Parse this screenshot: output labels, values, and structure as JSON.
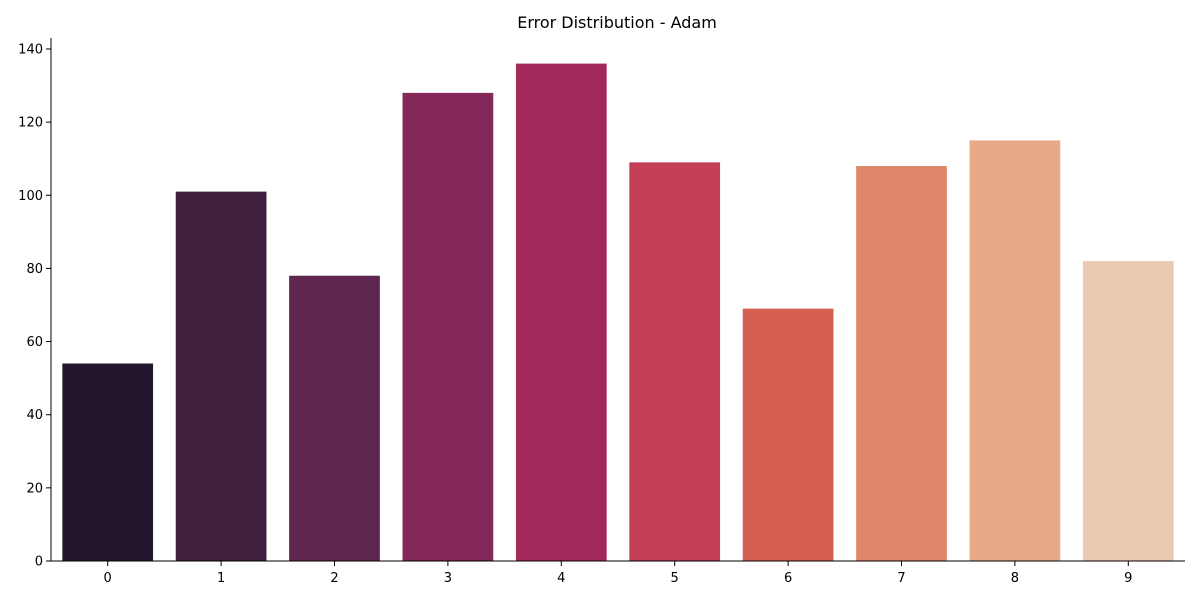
{
  "chart_data": {
    "type": "bar",
    "title": "Error Distribution - Adam",
    "xlabel": "",
    "ylabel": "",
    "categories": [
      "0",
      "1",
      "2",
      "3",
      "4",
      "5",
      "6",
      "7",
      "8",
      "9"
    ],
    "values": [
      54,
      101,
      78,
      128,
      136,
      109,
      69,
      108,
      115,
      82
    ],
    "colors": [
      "#23172d",
      "#41203f",
      "#5f264f",
      "#832859",
      "#a4295b",
      "#c43f56",
      "#d65f52",
      "#e08769",
      "#e7a988",
      "#ecc9b3"
    ],
    "ylim": [
      0,
      143
    ],
    "yticks": [
      0,
      20,
      40,
      60,
      80,
      100,
      120,
      140
    ],
    "grid": false,
    "legend": "none"
  }
}
